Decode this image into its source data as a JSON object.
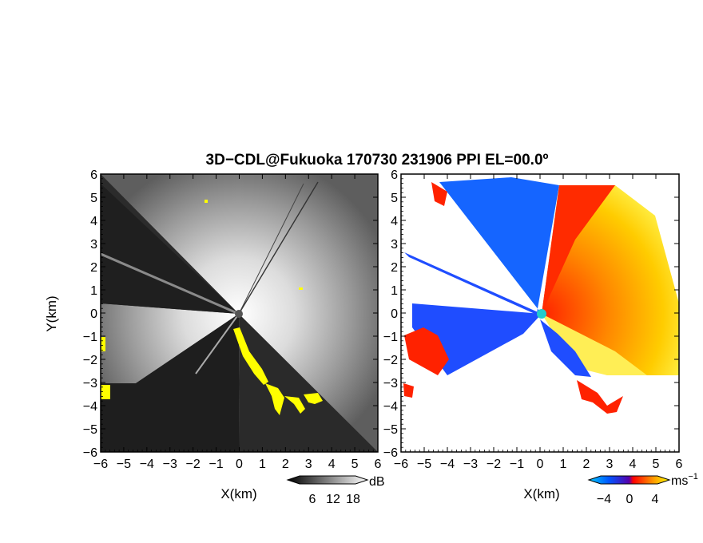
{
  "figure": {
    "title": "3D−CDL@Fukuoka 170730 231906 PPI EL=00.0º",
    "ylabel": "Y(km)",
    "xlabel": "X(km)",
    "colors": {
      "echo": "#ffff00",
      "site_left": "#555555",
      "site_right": "#22cccc"
    }
  },
  "chart_data": [
    {
      "type": "heatmap",
      "panel": "left",
      "quantity": "SNR",
      "xlabel": "X(km)",
      "ylabel": "Y(km)",
      "xlim": [
        -6,
        6
      ],
      "ylim": [
        -6,
        6
      ],
      "x_ticks": [
        "−6",
        "−5",
        "−4",
        "−3",
        "−2",
        "−1",
        "0",
        "1",
        "2",
        "3",
        "4",
        "5",
        "6"
      ],
      "y_ticks": [
        "6",
        "5",
        "4",
        "3",
        "2",
        "1",
        "0",
        "−1",
        "−2",
        "−3",
        "−4",
        "−5",
        "−6"
      ],
      "grid": false,
      "colorbar": {
        "unit": "dB",
        "ticks": [
          "6",
          "12",
          "18"
        ],
        "range": [
          0,
          22
        ]
      }
    },
    {
      "type": "heatmap",
      "panel": "right",
      "quantity": "radial velocity",
      "xlabel": "X(km)",
      "xlim": [
        -6,
        6
      ],
      "ylim": [
        -6,
        6
      ],
      "x_ticks": [
        "−6",
        "−5",
        "−4",
        "−3",
        "−2",
        "−1",
        "0",
        "1",
        "2",
        "3",
        "4",
        "5",
        "6"
      ],
      "y_ticks": [
        "6",
        "5",
        "4",
        "3",
        "2",
        "1",
        "0",
        "−1",
        "−2",
        "−3",
        "−4",
        "−5",
        "−6"
      ],
      "grid": false,
      "colorbar": {
        "unit": "ms",
        "unit_exp": "−1",
        "ticks": [
          "−4",
          "0",
          "4"
        ],
        "range": [
          -6,
          6
        ]
      }
    }
  ]
}
